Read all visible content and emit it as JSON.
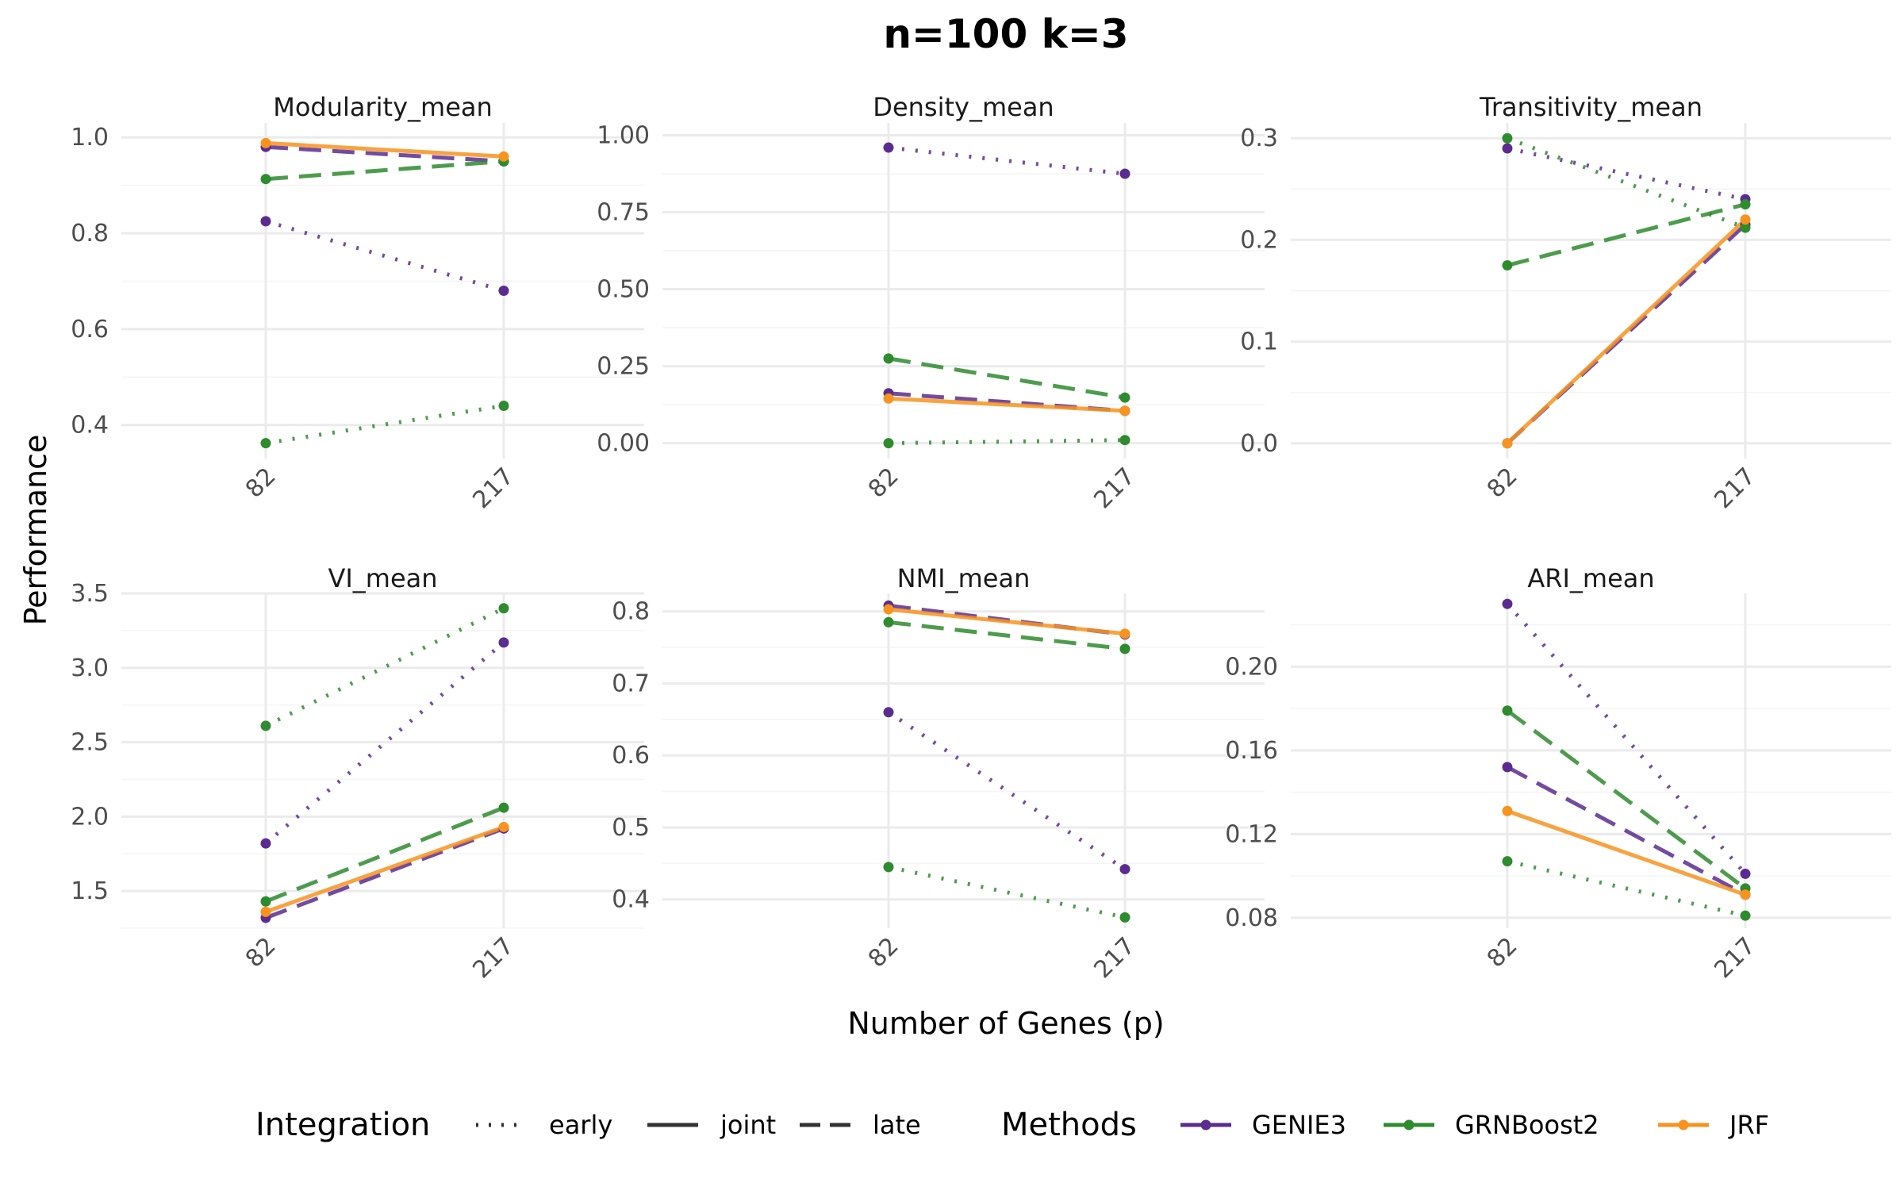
{
  "title": "n=100 k=3",
  "xlabel": "Number of Genes (p)",
  "ylabel": "Performance",
  "legend": {
    "integration_title": "Integration",
    "integration_items": [
      {
        "label": "early",
        "dash": "dotted"
      },
      {
        "label": "joint",
        "dash": "solid"
      },
      {
        "label": "late",
        "dash": "dashed"
      }
    ],
    "methods_title": "Methods",
    "methods_items": [
      {
        "label": "GENIE3",
        "color": "#5B2C8F"
      },
      {
        "label": "GRNBoost2",
        "color": "#2E8B2E"
      },
      {
        "label": "JRF",
        "color": "#F7931E"
      }
    ]
  },
  "colors": {
    "GENIE3": "#5B2C8F",
    "GRNBoost2": "#2E8B2E",
    "JRF": "#F7931E",
    "grid_major": "#EBEBEB",
    "grid_minor": "#F5F5F5",
    "text": "#4D4D4D"
  },
  "chart_data": [
    {
      "type": "line",
      "title": "Modularity_mean",
      "categories": [
        "82",
        "217"
      ],
      "ylim": [
        0.33,
        1.03
      ],
      "yticks": [
        0.4,
        0.6,
        0.8,
        1.0
      ],
      "ytick_labels": [
        "0.4",
        "0.6",
        "0.8",
        "1.0"
      ],
      "series": [
        {
          "method": "GENIE3",
          "integration": "early",
          "values": [
            0.825,
            0.68
          ]
        },
        {
          "method": "GENIE3",
          "integration": "late",
          "values": [
            0.98,
            0.95
          ]
        },
        {
          "method": "GRNBoost2",
          "integration": "early",
          "values": [
            0.362,
            0.44
          ]
        },
        {
          "method": "GRNBoost2",
          "integration": "late",
          "values": [
            0.913,
            0.95
          ]
        },
        {
          "method": "JRF",
          "integration": "joint",
          "values": [
            0.988,
            0.96
          ]
        }
      ]
    },
    {
      "type": "line",
      "title": "Density_mean",
      "categories": [
        "82",
        "217"
      ],
      "ylim": [
        -0.05,
        1.04
      ],
      "yticks": [
        0.0,
        0.25,
        0.5,
        0.75,
        1.0
      ],
      "ytick_labels": [
        "0.00",
        "0.25",
        "0.50",
        "0.75",
        "1.00"
      ],
      "series": [
        {
          "method": "GENIE3",
          "integration": "early",
          "values": [
            0.96,
            0.875
          ]
        },
        {
          "method": "GENIE3",
          "integration": "late",
          "values": [
            0.162,
            0.105
          ]
        },
        {
          "method": "GRNBoost2",
          "integration": "early",
          "values": [
            0.0,
            0.01
          ]
        },
        {
          "method": "GRNBoost2",
          "integration": "late",
          "values": [
            0.275,
            0.148
          ]
        },
        {
          "method": "JRF",
          "integration": "joint",
          "values": [
            0.145,
            0.105
          ]
        }
      ]
    },
    {
      "type": "line",
      "title": "Transitivity_mean",
      "categories": [
        "82",
        "217"
      ],
      "ylim": [
        -0.015,
        0.315
      ],
      "yticks": [
        0.0,
        0.1,
        0.2,
        0.3
      ],
      "ytick_labels": [
        "0.0",
        "0.1",
        "0.2",
        "0.3"
      ],
      "series": [
        {
          "method": "GENIE3",
          "integration": "early",
          "values": [
            0.29,
            0.24
          ]
        },
        {
          "method": "GENIE3",
          "integration": "late",
          "values": [
            0.0,
            0.215
          ]
        },
        {
          "method": "GRNBoost2",
          "integration": "early",
          "values": [
            0.3,
            0.212
          ]
        },
        {
          "method": "GRNBoost2",
          "integration": "late",
          "values": [
            0.175,
            0.235
          ]
        },
        {
          "method": "JRF",
          "integration": "joint",
          "values": [
            0.0,
            0.22
          ]
        }
      ]
    },
    {
      "type": "line",
      "title": "VI_mean",
      "categories": [
        "82",
        "217"
      ],
      "ylim": [
        1.25,
        3.5
      ],
      "yticks": [
        1.5,
        2.0,
        2.5,
        3.0,
        3.5
      ],
      "ytick_labels": [
        "1.5",
        "2.0",
        "2.5",
        "3.0",
        "3.5"
      ],
      "series": [
        {
          "method": "GENIE3",
          "integration": "early",
          "values": [
            1.82,
            3.17
          ]
        },
        {
          "method": "GENIE3",
          "integration": "late",
          "values": [
            1.32,
            1.92
          ]
        },
        {
          "method": "GRNBoost2",
          "integration": "early",
          "values": [
            2.61,
            3.4
          ]
        },
        {
          "method": "GRNBoost2",
          "integration": "late",
          "values": [
            1.43,
            2.06
          ]
        },
        {
          "method": "JRF",
          "integration": "joint",
          "values": [
            1.36,
            1.93
          ]
        }
      ]
    },
    {
      "type": "line",
      "title": "NMI_mean",
      "categories": [
        "82",
        "217"
      ],
      "ylim": [
        0.36,
        0.825
      ],
      "yticks": [
        0.4,
        0.5,
        0.6,
        0.7,
        0.8
      ],
      "ytick_labels": [
        "0.4",
        "0.5",
        "0.6",
        "0.7",
        "0.8"
      ],
      "series": [
        {
          "method": "GENIE3",
          "integration": "early",
          "values": [
            0.66,
            0.442
          ]
        },
        {
          "method": "GENIE3",
          "integration": "late",
          "values": [
            0.808,
            0.768
          ]
        },
        {
          "method": "GRNBoost2",
          "integration": "early",
          "values": [
            0.445,
            0.375
          ]
        },
        {
          "method": "GRNBoost2",
          "integration": "late",
          "values": [
            0.785,
            0.748
          ]
        },
        {
          "method": "JRF",
          "integration": "joint",
          "values": [
            0.803,
            0.769
          ]
        }
      ]
    },
    {
      "type": "line",
      "title": "ARI_mean",
      "categories": [
        "82",
        "217"
      ],
      "ylim": [
        0.075,
        0.235
      ],
      "yticks": [
        0.08,
        0.12,
        0.16,
        0.2
      ],
      "ytick_labels": [
        "0.08",
        "0.12",
        "0.16",
        "0.20"
      ],
      "series": [
        {
          "method": "GENIE3",
          "integration": "early",
          "values": [
            0.23,
            0.101
          ]
        },
        {
          "method": "GENIE3",
          "integration": "late",
          "values": [
            0.152,
            0.091
          ]
        },
        {
          "method": "GRNBoost2",
          "integration": "early",
          "values": [
            0.107,
            0.081
          ]
        },
        {
          "method": "GRNBoost2",
          "integration": "late",
          "values": [
            0.179,
            0.094
          ]
        },
        {
          "method": "JRF",
          "integration": "joint",
          "values": [
            0.131,
            0.091
          ]
        }
      ]
    }
  ]
}
